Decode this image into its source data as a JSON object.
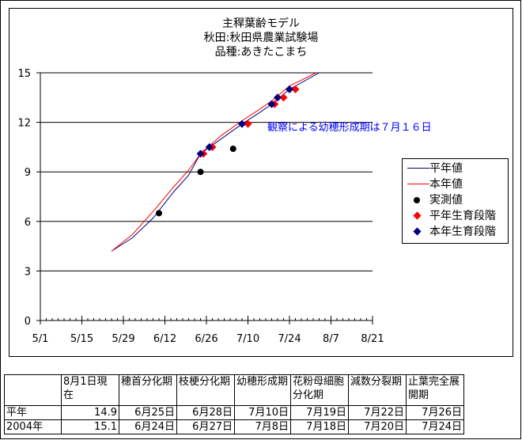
{
  "chart_data": {
    "type": "line",
    "title_lines": [
      "主稈葉齢モデル",
      "秋田:秋田県農業試験場",
      "品種:あきたこまち"
    ],
    "xlabel": "",
    "ylabel": "",
    "x_ticks": [
      "5/1",
      "5/15",
      "5/29",
      "6/12",
      "6/26",
      "7/10",
      "7/24",
      "8/7",
      "8/21"
    ],
    "xlim": [
      "5/1",
      "8/21"
    ],
    "y_ticks": [
      0,
      3,
      6,
      9,
      12,
      15
    ],
    "ylim": [
      0,
      15
    ],
    "grid": "horizontal",
    "legend_position": "right",
    "annotation": {
      "text": "観察による幼穂形成期は７月１６日",
      "color": "#0000FF"
    },
    "series": [
      {
        "name": "平年値",
        "kind": "line",
        "color": "#000080",
        "points": [
          [
            "5/25",
            4.2
          ],
          [
            "6/1",
            5.0
          ],
          [
            "6/8",
            6.2
          ],
          [
            "6/15",
            7.8
          ],
          [
            "6/20",
            8.8
          ],
          [
            "6/24",
            10.1
          ],
          [
            "7/1",
            11.0
          ],
          [
            "7/8",
            11.9
          ],
          [
            "7/14",
            12.6
          ],
          [
            "7/18",
            13.1
          ],
          [
            "7/24",
            14.0
          ],
          [
            "8/3",
            15.0
          ]
        ]
      },
      {
        "name": "本年値",
        "kind": "line",
        "color": "#FF0000",
        "points": [
          [
            "5/25",
            4.2
          ],
          [
            "6/1",
            5.2
          ],
          [
            "6/8",
            6.6
          ],
          [
            "6/15",
            8.1
          ],
          [
            "6/20",
            9.1
          ],
          [
            "6/24",
            10.1
          ],
          [
            "7/1",
            11.2
          ],
          [
            "7/8",
            12.1
          ],
          [
            "7/14",
            12.8
          ],
          [
            "7/18",
            13.3
          ],
          [
            "7/24",
            14.2
          ],
          [
            "8/2",
            15.0
          ]
        ]
      },
      {
        "name": "実測値",
        "kind": "dot",
        "color": "#000000",
        "points": [
          [
            "6/10",
            6.5
          ],
          [
            "6/24",
            9.0
          ],
          [
            "7/5",
            10.4
          ]
        ]
      },
      {
        "name": "平年生育段階",
        "kind": "diamond",
        "color": "#FF0000",
        "points": [
          [
            "6/25",
            10.1
          ],
          [
            "6/28",
            10.5
          ],
          [
            "7/10",
            11.9
          ],
          [
            "7/19",
            13.1
          ],
          [
            "7/22",
            13.5
          ],
          [
            "7/26",
            14.0
          ]
        ]
      },
      {
        "name": "本年生育段階",
        "kind": "diamond",
        "color": "#000080",
        "points": [
          [
            "6/24",
            10.1
          ],
          [
            "6/27",
            10.5
          ],
          [
            "7/8",
            11.9
          ],
          [
            "7/18",
            13.1
          ],
          [
            "7/20",
            13.5
          ],
          [
            "7/24",
            14.0
          ]
        ]
      }
    ]
  },
  "table": {
    "headers": [
      "",
      "8月1日現在",
      "穂首分化期",
      "枝梗分化期",
      "幼穂形成期",
      "花粉母細胞分化期",
      "減数分裂期",
      "止葉完全展開期"
    ],
    "rows": [
      [
        "平年",
        "14.9",
        "6月25日",
        "6月28日",
        "7月10日",
        "7月19日",
        "7月22日",
        "7月26日"
      ],
      [
        "2004年",
        "15.1",
        "6月24日",
        "6月27日",
        "7月8日",
        "7月18日",
        "7月20日",
        "7月24日"
      ]
    ]
  }
}
